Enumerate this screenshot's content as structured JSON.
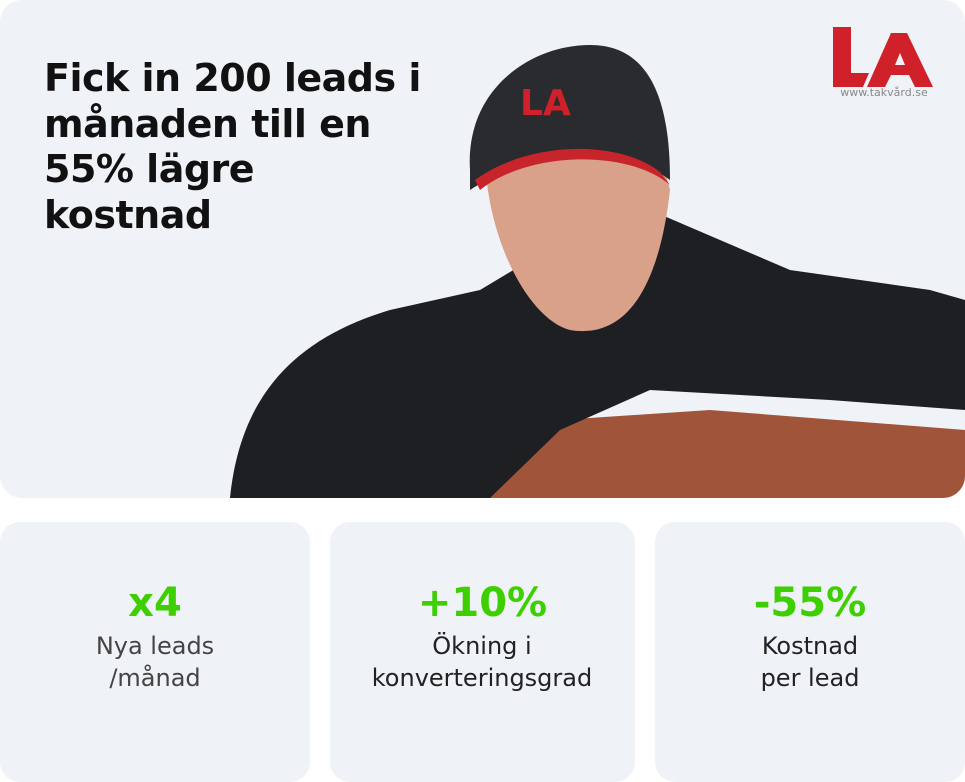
{
  "hero": {
    "headline": "Fick in 200 leads i månaden till en 55% lägre kostnad"
  },
  "logo": {
    "text": "LA",
    "url": "www.takvård.se",
    "color": "#d0202a"
  },
  "stats": [
    {
      "value": "x4",
      "label": "Nya leads /månad"
    },
    {
      "value": "+10%",
      "label": "Ökning i konverteringsgrad"
    },
    {
      "value": "-55%",
      "label": "Kostnad per lead"
    }
  ],
  "colors": {
    "accent": "#3ecf00",
    "card_bg": "#eff2f7"
  }
}
